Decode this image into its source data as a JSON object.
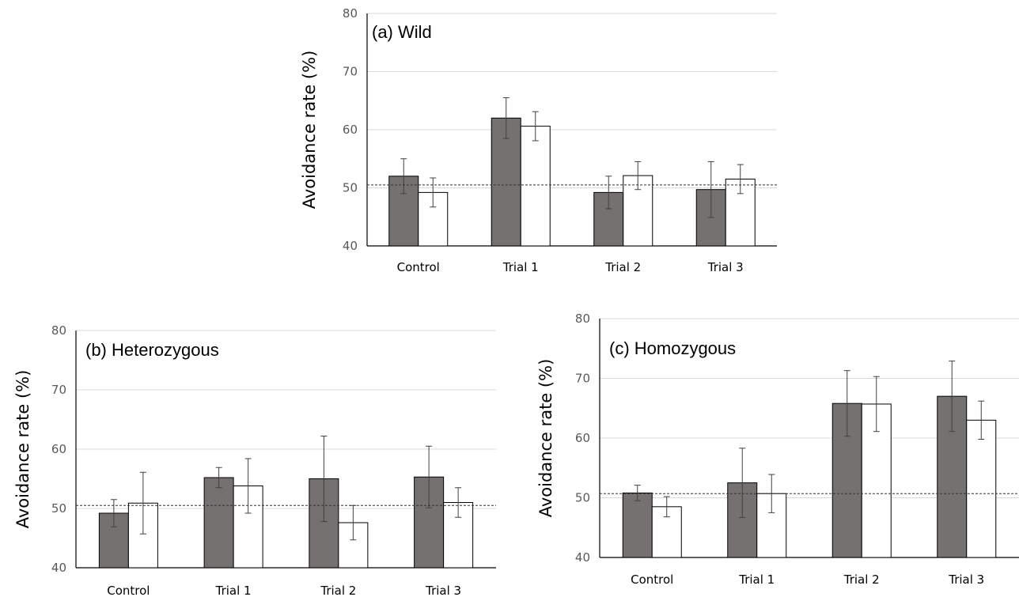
{
  "chart_data": [
    {
      "type": "bar",
      "title": "(a) Wild",
      "ylabel": "Avoidance rate (%)",
      "xlabel": "",
      "ylim": [
        40,
        80
      ],
      "yticks": [
        40,
        50,
        60,
        70,
        80
      ],
      "grid": true,
      "reference_line": 50.5,
      "categories": [
        "Control",
        "Trial 1",
        "Trial 2",
        "Trial 3"
      ],
      "series": [
        {
          "color": "#767171",
          "values": [
            52.0,
            62.0,
            49.2,
            49.7
          ],
          "errors": [
            3.0,
            3.5,
            2.8,
            4.8
          ]
        },
        {
          "color": "#ffffff",
          "values": [
            49.2,
            60.6,
            52.1,
            51.5
          ],
          "errors": [
            2.5,
            2.5,
            2.4,
            2.5
          ]
        }
      ]
    },
    {
      "type": "bar",
      "title": "(b) Heterozygous",
      "ylabel": "Avoidance rate (%)",
      "xlabel": "",
      "ylim": [
        40,
        80
      ],
      "yticks": [
        40,
        50,
        60,
        70,
        80
      ],
      "grid": true,
      "reference_line": 50.5,
      "categories": [
        "Control",
        "Trial 1",
        "Trial 2",
        "Trial 3"
      ],
      "series": [
        {
          "color": "#767171",
          "values": [
            49.2,
            55.2,
            55.0,
            55.3
          ],
          "errors": [
            2.3,
            1.7,
            7.2,
            5.2
          ]
        },
        {
          "color": "#ffffff",
          "values": [
            50.9,
            53.8,
            47.6,
            51.0
          ],
          "errors": [
            5.2,
            4.6,
            2.9,
            2.5
          ]
        }
      ]
    },
    {
      "type": "bar",
      "title": "(c) Homozygous",
      "ylabel": "Avoidance rate (%)",
      "xlabel": "",
      "ylim": [
        40,
        80
      ],
      "yticks": [
        40,
        50,
        60,
        70,
        80
      ],
      "grid": true,
      "reference_line": 50.7,
      "categories": [
        "Control",
        "Trial 1",
        "Trial 2",
        "Trial 3"
      ],
      "series": [
        {
          "color": "#767171",
          "values": [
            50.8,
            52.5,
            65.8,
            67.0
          ],
          "errors": [
            1.3,
            5.8,
            5.5,
            5.9
          ]
        },
        {
          "color": "#ffffff",
          "values": [
            48.5,
            50.7,
            65.7,
            63.0
          ],
          "errors": [
            1.7,
            3.2,
            4.6,
            3.2
          ]
        }
      ]
    }
  ]
}
